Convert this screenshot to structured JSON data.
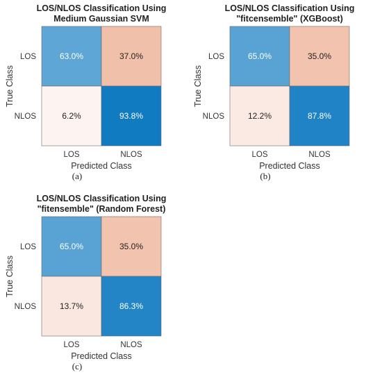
{
  "chart_data": [
    {
      "type": "heatmap",
      "panel_label": "(a)",
      "title_lines": [
        "LOS/NLOS Classification Using",
        "Medium Gaussian SVM"
      ],
      "xlabel": "Predicted Class",
      "ylabel": "True Class",
      "x_categories": [
        "LOS",
        "NLOS"
      ],
      "y_categories": [
        "LOS",
        "NLOS"
      ],
      "values": [
        [
          63.0,
          37.0
        ],
        [
          6.2,
          93.8
        ]
      ],
      "value_labels": [
        [
          "63.0%",
          "37.0%"
        ],
        [
          "6.2%",
          "93.8%"
        ]
      ],
      "grid": false,
      "legend": "none"
    },
    {
      "type": "heatmap",
      "panel_label": "(b)",
      "title_lines": [
        "LOS/NLOS Classification Using",
        "\"fitcensemble\" (XGBoost)"
      ],
      "xlabel": "Predicted Class",
      "ylabel": "True Class",
      "x_categories": [
        "LOS",
        "NLOS"
      ],
      "y_categories": [
        "LOS",
        "NLOS"
      ],
      "values": [
        [
          65.0,
          35.0
        ],
        [
          12.2,
          87.8
        ]
      ],
      "value_labels": [
        [
          "65.0%",
          "35.0%"
        ],
        [
          "12.2%",
          "87.8%"
        ]
      ],
      "grid": false,
      "legend": "none"
    },
    {
      "type": "heatmap",
      "panel_label": "(c)",
      "title_lines": [
        "LOS/NLOS Classification Using",
        "\"fitensemble\" (Random Forest)"
      ],
      "xlabel": "Predicted Class",
      "ylabel": "True Class",
      "x_categories": [
        "LOS",
        "NLOS"
      ],
      "y_categories": [
        "LOS",
        "NLOS"
      ],
      "values": [
        [
          65.0,
          35.0
        ],
        [
          13.7,
          86.3
        ]
      ],
      "value_labels": [
        [
          "65.0%",
          "35.0%"
        ],
        [
          "13.7%",
          "86.3%"
        ]
      ],
      "grid": false,
      "legend": "none"
    }
  ],
  "colors": {
    "correct_dark": "#0072bd",
    "correct_light": "#ffffff",
    "error_dark": "#d9541a",
    "error_light": "#ffffff",
    "text_dark": "#1f1f1f",
    "text_light": "#ffffff",
    "cell_border": "#6b6b6b"
  }
}
